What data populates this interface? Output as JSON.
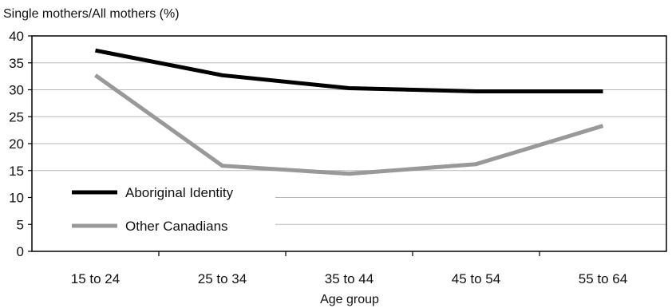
{
  "chart_data": {
    "type": "line",
    "title": "",
    "ylabel": "Single mothers/All mothers (%)",
    "xlabel": "Age group",
    "categories": [
      "15 to 24",
      "25 to 34",
      "35 to 44",
      "45 to 54",
      "55 to 64"
    ],
    "yticks": [
      "0",
      "5",
      "10",
      "15",
      "20",
      "25",
      "30",
      "35",
      "40"
    ],
    "ylim": [
      0,
      40
    ],
    "grid": true,
    "legend_position": "bottom-left",
    "series": [
      {
        "name": "Aboriginal Identity",
        "values": [
          37.3,
          32.7,
          30.3,
          29.7,
          29.7
        ],
        "color": "#000000"
      },
      {
        "name": "Other Canadians",
        "values": [
          32.7,
          15.9,
          14.4,
          16.2,
          23.3
        ],
        "color": "#999999"
      }
    ]
  }
}
